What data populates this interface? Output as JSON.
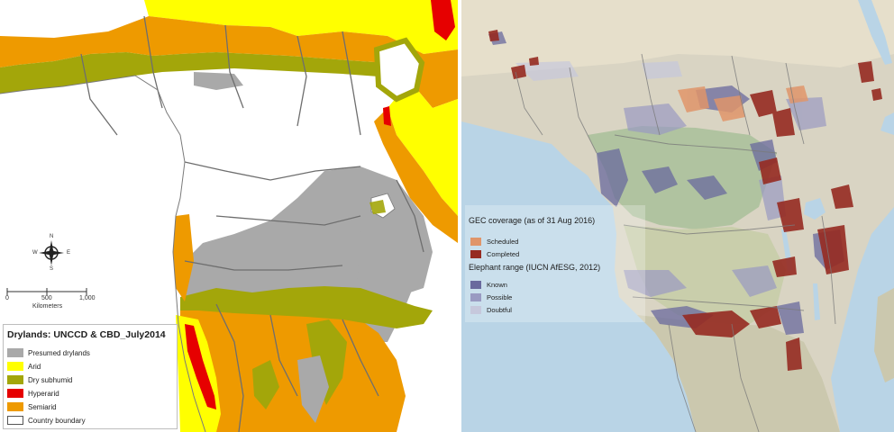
{
  "left_map": {
    "legend": {
      "title": "Drylands: UNCCD & CBD_July2014",
      "items": [
        {
          "label": "Presumed drylands",
          "color": "#a9a9a9"
        },
        {
          "label": "Arid",
          "color": "#ffff00"
        },
        {
          "label": "Dry subhumid",
          "color": "#a3a60a"
        },
        {
          "label": "Hyperarid",
          "color": "#e60000"
        },
        {
          "label": "Semiarid",
          "color": "#ee9a00"
        },
        {
          "label": "Country boundary",
          "color": "#ffffff"
        }
      ]
    },
    "compass": {
      "n": "N",
      "s": "S",
      "e": "E",
      "w": "W"
    },
    "scale": {
      "ticks": [
        "0",
        "500",
        "1,000"
      ],
      "unit": "Kilometers"
    }
  },
  "right_map": {
    "legend": {
      "gec_title": "GEC coverage (as of 31 Aug 2016)",
      "gec_items": [
        {
          "label": "Scheduled",
          "color": "#e0956a"
        },
        {
          "label": "Completed",
          "color": "#962b22"
        }
      ],
      "range_title": "Elephant range (IUCN AfESG, 2012)",
      "range_items": [
        {
          "label": "Known",
          "color": "#6a6a9e"
        },
        {
          "label": "Possible",
          "color": "#9a9ac2"
        },
        {
          "label": "Doubtful",
          "color": "#c6c8dc"
        }
      ]
    }
  }
}
